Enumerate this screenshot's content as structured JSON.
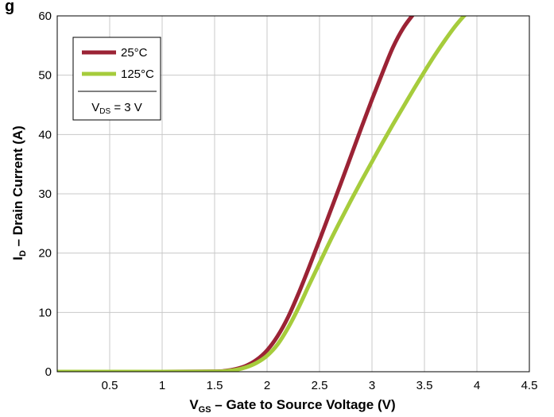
{
  "chart_data": {
    "type": "line",
    "title_fragment": "g",
    "xlabel": {
      "main": "V",
      "sub": "GS",
      "rest": " – Gate to Source Voltage (V)"
    },
    "ylabel": {
      "main": "I",
      "sub": "D",
      "rest": " – Drain Current (A)"
    },
    "xlim": [
      0,
      4.5
    ],
    "ylim": [
      0,
      60
    ],
    "x_ticks": [
      "0.5",
      "1",
      "1.5",
      "2",
      "2.5",
      "3",
      "3.5",
      "4",
      "4.5"
    ],
    "y_ticks": [
      "0",
      "10",
      "20",
      "30",
      "40",
      "50",
      "60"
    ],
    "grid": true,
    "legend": {
      "placement": "top-left",
      "note": {
        "main": "V",
        "sub": "DS",
        "rest": " = 3 V"
      }
    },
    "series": [
      {
        "name": "25°C",
        "color": "#9b2335",
        "x": [
          0,
          1.0,
          1.5,
          1.6,
          1.7,
          1.8,
          1.9,
          2.0,
          2.1,
          2.2,
          2.3,
          2.4,
          2.5,
          2.6,
          2.7,
          2.8,
          2.9,
          3.0,
          3.1,
          3.2,
          3.3,
          3.4,
          3.43
        ],
        "y": [
          0,
          0,
          0.05,
          0.15,
          0.45,
          1.0,
          2.0,
          3.6,
          6.0,
          9.2,
          13.2,
          17.6,
          22.2,
          26.9,
          31.6,
          36.4,
          41.2,
          45.9,
          50.4,
          54.7,
          58.0,
          60.4,
          61.0
        ]
      },
      {
        "name": "125°C",
        "color": "#a6cc3c",
        "x": [
          0,
          1.0,
          1.5,
          1.6,
          1.7,
          1.8,
          1.9,
          2.0,
          2.1,
          2.2,
          2.3,
          2.4,
          2.5,
          2.6,
          2.7,
          2.8,
          2.9,
          3.0,
          3.1,
          3.2,
          3.3,
          3.4,
          3.5,
          3.6,
          3.7,
          3.8,
          3.9,
          4.0,
          4.02
        ],
        "y": [
          0,
          0,
          0.03,
          0.1,
          0.3,
          0.75,
          1.5,
          2.7,
          4.6,
          7.4,
          10.8,
          14.6,
          18.3,
          22.0,
          25.5,
          28.9,
          32.2,
          35.4,
          38.6,
          41.7,
          44.7,
          47.7,
          50.6,
          53.4,
          56.0,
          58.4,
          60.4,
          61.6,
          62.0
        ]
      }
    ]
  }
}
